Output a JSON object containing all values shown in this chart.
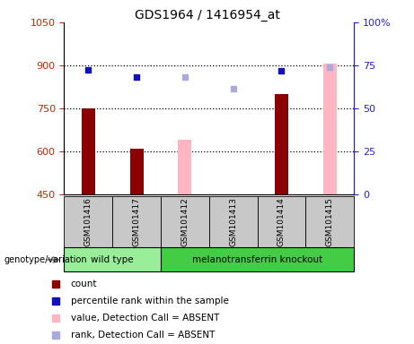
{
  "title": "GDS1964 / 1416954_at",
  "samples": [
    "GSM101416",
    "GSM101417",
    "GSM101412",
    "GSM101413",
    "GSM101414",
    "GSM101415"
  ],
  "ylim_left": [
    450,
    1050
  ],
  "ylim_right": [
    0,
    100
  ],
  "yticks_left": [
    450,
    600,
    750,
    900,
    1050
  ],
  "yticks_right": [
    0,
    25,
    50,
    75,
    100
  ],
  "ytick_labels_right": [
    "0",
    "25",
    "50",
    "75",
    "100%"
  ],
  "count_values": [
    750,
    610,
    null,
    null,
    800,
    null
  ],
  "value_absent": [
    null,
    null,
    640,
    null,
    null,
    905
  ],
  "percentile_present": [
    885,
    860,
    null,
    null,
    882,
    null
  ],
  "rank_absent": [
    null,
    null,
    858,
    820,
    null,
    893
  ],
  "color_count": "#8B0000",
  "color_percentile": "#1111BB",
  "color_value_absent": "#FFB6C1",
  "color_rank_absent": "#AAAADD",
  "left_tick_color": "#CC2200",
  "right_tick_color": "#2222CC",
  "wt_color": "#99EE99",
  "mt_color": "#44CC44",
  "label_box_color": "#C8C8C8",
  "legend_items": [
    {
      "label": "count",
      "color": "#8B0000"
    },
    {
      "label": "percentile rank within the sample",
      "color": "#1111BB"
    },
    {
      "label": "value, Detection Call = ABSENT",
      "color": "#FFB6C1"
    },
    {
      "label": "rank, Detection Call = ABSENT",
      "color": "#AAAADD"
    }
  ]
}
